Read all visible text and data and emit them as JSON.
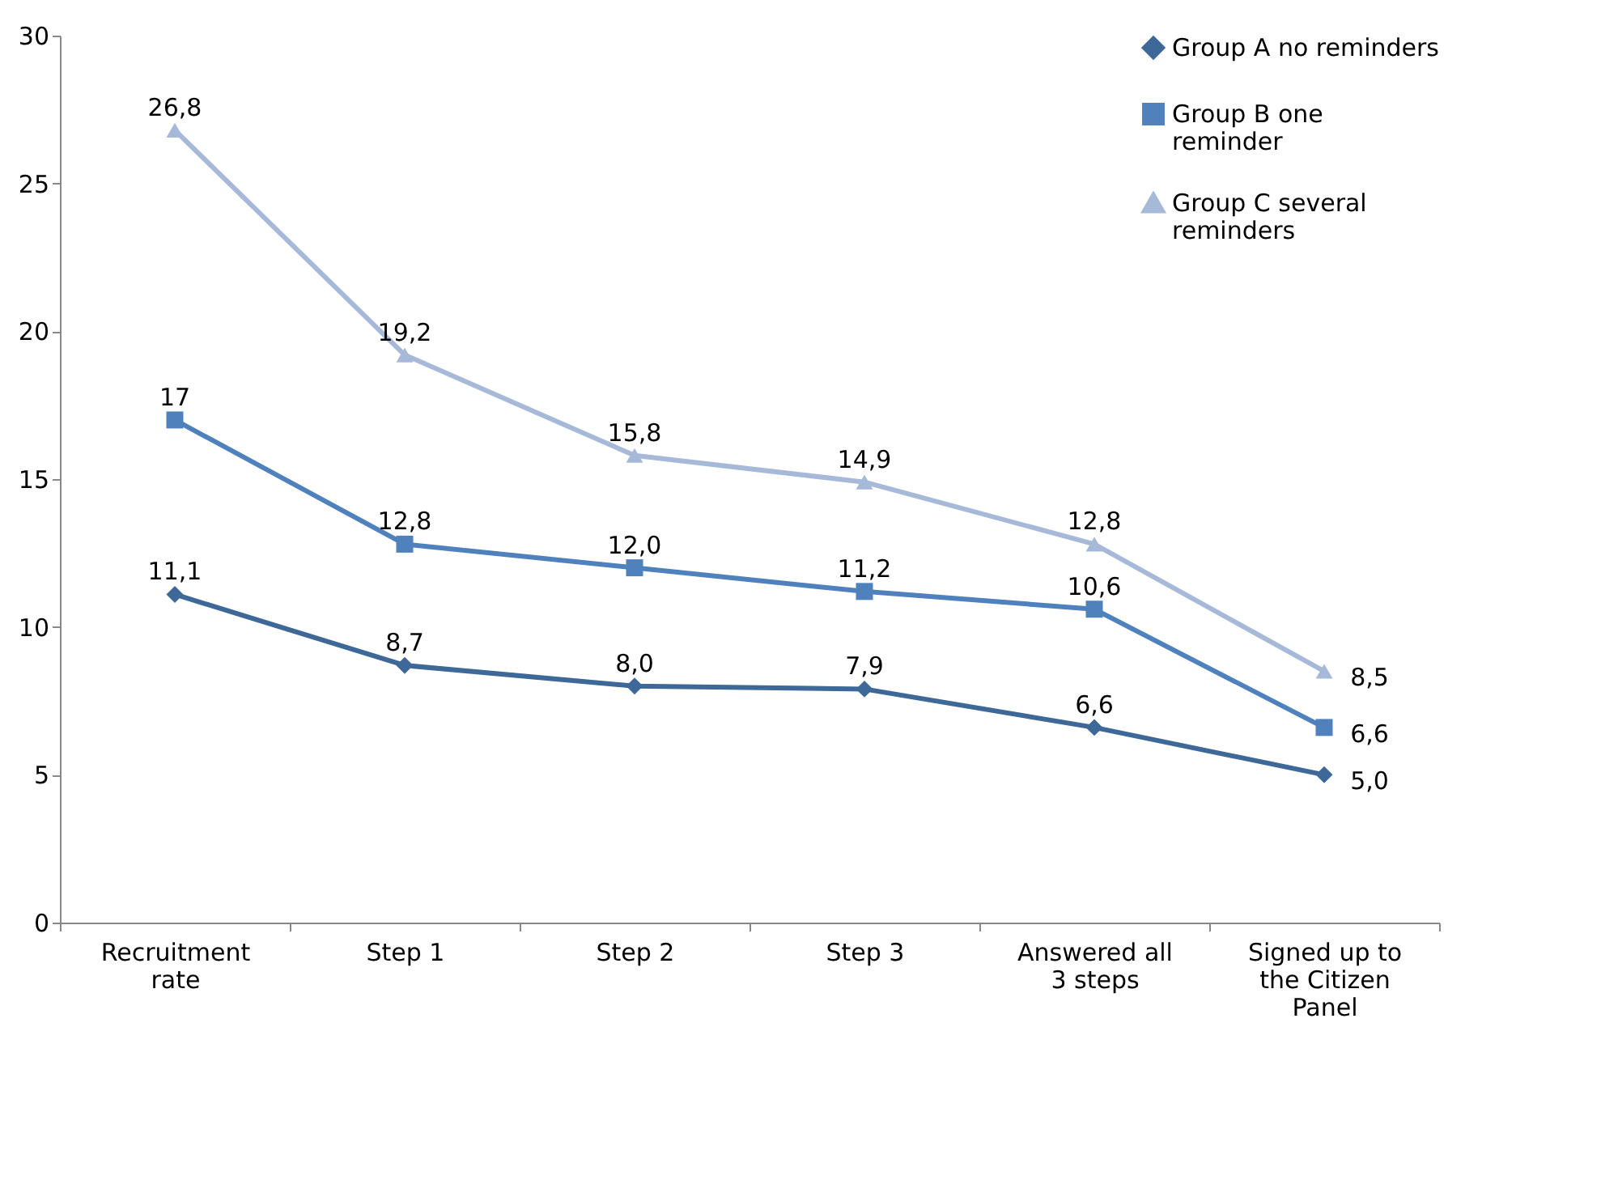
{
  "chart_data": {
    "type": "line",
    "categories": [
      "Recruitment rate",
      "Step 1",
      "Step 2",
      "Step 3",
      "Answered all 3 steps",
      "Signed up to the Citizen Panel"
    ],
    "ylim": [
      0,
      30
    ],
    "yticks": [
      0,
      5,
      10,
      15,
      20,
      25,
      30
    ],
    "grid": false,
    "legend": "top right",
    "line_style": "solid",
    "series": [
      {
        "name": "Group A no reminders",
        "color": "#3d6898",
        "marker": "diamond",
        "values": [
          11.1,
          8.7,
          8.0,
          7.9,
          6.6,
          5.0
        ],
        "value_labels": [
          "11,1",
          "8,7",
          "8,0",
          "7,9",
          "6,6",
          "5,0"
        ]
      },
      {
        "name": "Group B  one reminder",
        "color": "#4f81bd",
        "marker": "square",
        "values": [
          17,
          12.8,
          12.0,
          11.2,
          10.6,
          6.6
        ],
        "value_labels": [
          "17",
          "12,8",
          "12,0",
          "11,2",
          "10,6",
          "6,6"
        ]
      },
      {
        "name": "Group C  several reminders",
        "color": "#a7b9d9",
        "marker": "triangle",
        "values": [
          26.8,
          19.2,
          15.8,
          14.9,
          12.8,
          8.5
        ],
        "value_labels": [
          "26,8",
          "19,2",
          "15,8",
          "14,9",
          "12,8",
          "8,5"
        ]
      }
    ]
  }
}
